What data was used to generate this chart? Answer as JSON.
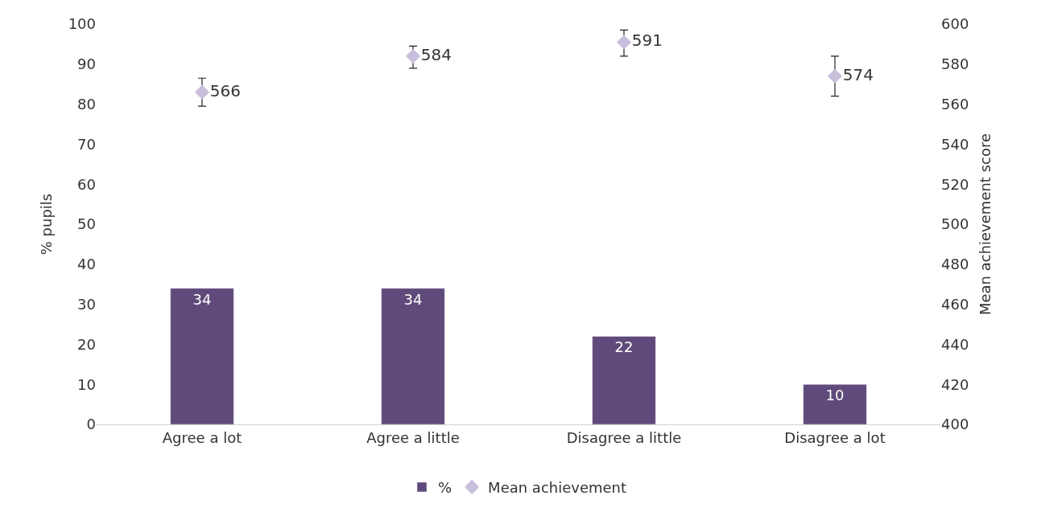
{
  "chart_data": {
    "type": "bar",
    "categories": [
      "Agree a lot",
      "Agree a little",
      "Disagree a little",
      "Disagree a lot"
    ],
    "ylabel": "% pupils",
    "y2label": "Mean achievement score",
    "ylim": [
      0,
      100
    ],
    "yticks": [
      0,
      10,
      20,
      30,
      40,
      50,
      60,
      70,
      80,
      90,
      100
    ],
    "y2lim": [
      400,
      600
    ],
    "y2ticks": [
      400,
      420,
      440,
      460,
      480,
      500,
      520,
      540,
      560,
      580,
      600
    ],
    "series": [
      {
        "name": "%",
        "color": "#5f4a7b",
        "values": [
          34,
          34,
          22,
          10
        ]
      },
      {
        "name": "Mean achievement",
        "type": "scatter",
        "axis": "y2",
        "color": "#c9bedb",
        "marker": "diamond",
        "values": [
          566,
          584,
          591,
          574
        ],
        "errors": [
          [
            559,
            573
          ],
          [
            578,
            589
          ],
          [
            584,
            597
          ],
          [
            564,
            584
          ]
        ]
      }
    ],
    "data_labels": true,
    "legend": "bottom"
  }
}
